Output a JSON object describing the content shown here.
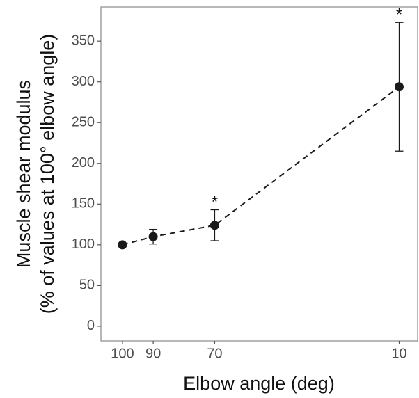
{
  "chart_data": {
    "type": "line",
    "xlabel": "Elbow angle (deg)",
    "ylabel": [
      "Muscle shear modulus",
      "(% of values at 100° elbow angle)"
    ],
    "x": [
      100,
      90,
      70,
      10
    ],
    "values": [
      100,
      110,
      124,
      294
    ],
    "errors": [
      0,
      9,
      19,
      79
    ],
    "color": "#1a1a1a",
    "line_style": "dashed",
    "annotations": [
      {
        "x": 70,
        "text": "*"
      },
      {
        "x": 10,
        "text": "*"
      }
    ],
    "xlim": [
      107,
      4
    ],
    "xticks": [
      100,
      90,
      70,
      10
    ],
    "ylim": [
      -18,
      392
    ],
    "yticks": [
      0,
      50,
      100,
      150,
      200,
      250,
      300,
      350
    ],
    "grid": false
  }
}
